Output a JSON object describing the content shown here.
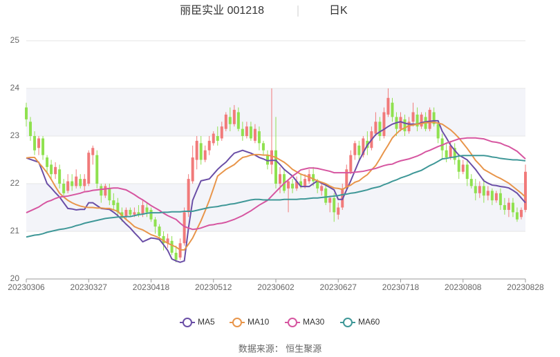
{
  "chart_data": {
    "type": "candlestick",
    "title": "丽臣实业 001218",
    "subtitle": "日K",
    "source": "数据来源： 恒生聚源",
    "up_color": "#f17a7a",
    "down_color": "#8fe14f",
    "ylim": [
      20,
      25
    ],
    "yticks": [
      20,
      21,
      22,
      23,
      24,
      25
    ],
    "grid": true,
    "legend": "bottom",
    "categories": [
      "20230306",
      null,
      null,
      null,
      null,
      null,
      null,
      null,
      null,
      null,
      null,
      null,
      null,
      null,
      null,
      "20230327",
      null,
      null,
      null,
      null,
      null,
      null,
      null,
      null,
      null,
      null,
      null,
      null,
      null,
      null,
      "20230418",
      null,
      null,
      null,
      null,
      null,
      null,
      null,
      null,
      null,
      null,
      null,
      null,
      null,
      null,
      "20230512",
      null,
      null,
      null,
      null,
      null,
      null,
      null,
      null,
      null,
      null,
      null,
      null,
      null,
      null,
      "20230602",
      null,
      null,
      null,
      null,
      null,
      null,
      null,
      null,
      null,
      null,
      null,
      null,
      null,
      null,
      "20230627",
      null,
      null,
      null,
      null,
      null,
      null,
      null,
      null,
      null,
      null,
      null,
      null,
      null,
      null,
      "20230718",
      null,
      null,
      null,
      null,
      null,
      null,
      null,
      null,
      null,
      null,
      null,
      null,
      null,
      null,
      "20230808",
      null,
      null,
      null,
      null,
      null,
      null,
      null,
      null,
      null,
      null,
      null,
      null,
      null,
      null,
      "20230828"
    ],
    "candles": [
      [
        23.6,
        23.35,
        23.2,
        23.7
      ],
      [
        23.3,
        23.0,
        22.9,
        23.4
      ],
      [
        23.0,
        22.7,
        22.6,
        23.1
      ],
      [
        22.75,
        22.95,
        22.6,
        23.0
      ],
      [
        22.95,
        22.6,
        22.5,
        23.0
      ],
      [
        22.55,
        22.35,
        22.2,
        22.6
      ],
      [
        22.4,
        22.2,
        22.1,
        22.5
      ],
      [
        22.2,
        22.35,
        22.1,
        22.45
      ],
      [
        22.3,
        22.0,
        21.9,
        22.4
      ],
      [
        22.0,
        21.8,
        21.75,
        22.1
      ],
      [
        21.85,
        22.05,
        21.8,
        22.2
      ],
      [
        22.05,
        21.95,
        21.85,
        22.2
      ],
      [
        21.95,
        22.15,
        21.9,
        22.3
      ],
      [
        22.1,
        21.95,
        21.9,
        22.2
      ],
      [
        21.95,
        22.1,
        21.85,
        22.2
      ],
      [
        22.0,
        22.65,
        21.95,
        22.7
      ],
      [
        22.6,
        22.75,
        22.4,
        22.8
      ],
      [
        22.6,
        22.0,
        21.9,
        22.7
      ],
      [
        21.95,
        21.75,
        21.6,
        22.0
      ],
      [
        21.75,
        21.95,
        21.7,
        22.0
      ],
      [
        21.9,
        21.65,
        21.55,
        22.0
      ],
      [
        21.65,
        21.55,
        21.45,
        21.8
      ],
      [
        21.6,
        21.4,
        21.3,
        21.7
      ],
      [
        21.4,
        21.3,
        21.2,
        21.5
      ],
      [
        21.3,
        21.45,
        21.25,
        21.5
      ],
      [
        21.45,
        21.35,
        21.3,
        21.5
      ],
      [
        21.35,
        21.4,
        21.3,
        21.5
      ],
      [
        21.4,
        21.35,
        21.3,
        21.55
      ],
      [
        21.35,
        21.55,
        21.3,
        21.65
      ],
      [
        21.5,
        21.4,
        21.3,
        21.6
      ],
      [
        21.45,
        21.25,
        21.2,
        21.5
      ],
      [
        21.25,
        21.1,
        20.95,
        21.3
      ],
      [
        21.1,
        20.9,
        20.8,
        21.15
      ],
      [
        20.9,
        20.75,
        20.6,
        21.0
      ],
      [
        20.75,
        20.85,
        20.65,
        20.95
      ],
      [
        20.8,
        20.55,
        20.5,
        20.9
      ],
      [
        20.55,
        20.4,
        20.35,
        20.7
      ],
      [
        20.45,
        20.75,
        20.4,
        20.85
      ],
      [
        20.75,
        21.4,
        20.7,
        21.5
      ],
      [
        21.4,
        22.1,
        21.3,
        22.2
      ],
      [
        22.05,
        22.55,
        22.0,
        22.8
      ],
      [
        22.5,
        22.9,
        22.3,
        23.0
      ],
      [
        22.85,
        22.5,
        22.4,
        23.0
      ],
      [
        22.5,
        22.7,
        22.45,
        22.8
      ],
      [
        22.7,
        22.9,
        22.6,
        23.0
      ],
      [
        22.85,
        23.05,
        22.8,
        23.1
      ],
      [
        23.0,
        22.9,
        22.8,
        23.2
      ],
      [
        22.95,
        23.2,
        22.9,
        23.3
      ],
      [
        23.15,
        23.45,
        23.1,
        23.5
      ],
      [
        23.4,
        23.25,
        23.1,
        23.6
      ],
      [
        23.25,
        23.55,
        23.2,
        23.65
      ],
      [
        23.5,
        23.15,
        23.1,
        23.6
      ],
      [
        23.15,
        23.0,
        22.9,
        23.3
      ],
      [
        23.0,
        23.2,
        22.95,
        23.3
      ],
      [
        23.2,
        22.95,
        22.9,
        23.3
      ],
      [
        22.9,
        23.15,
        22.85,
        23.25
      ],
      [
        23.1,
        22.85,
        22.7,
        23.2
      ],
      [
        22.85,
        22.7,
        22.6,
        22.9
      ],
      [
        22.6,
        22.4,
        22.3,
        22.7
      ],
      [
        22.4,
        22.7,
        22.2,
        24.0
      ],
      [
        22.7,
        22.0,
        21.9,
        23.4
      ],
      [
        22.0,
        22.2,
        21.8,
        22.35
      ],
      [
        22.2,
        21.85,
        21.8,
        22.3
      ],
      [
        21.9,
        22.05,
        21.4,
        22.1
      ],
      [
        22.0,
        21.9,
        21.8,
        22.1
      ],
      [
        21.9,
        22.05,
        21.85,
        22.15
      ],
      [
        22.05,
        21.95,
        21.9,
        22.2
      ],
      [
        21.95,
        22.1,
        21.9,
        22.2
      ],
      [
        22.05,
        22.2,
        22.0,
        22.3
      ],
      [
        22.2,
        22.05,
        21.95,
        22.35
      ],
      [
        22.05,
        21.9,
        21.8,
        22.1
      ],
      [
        21.85,
        21.95,
        21.75,
        22.0
      ],
      [
        21.9,
        21.6,
        21.55,
        22.0
      ],
      [
        21.6,
        21.7,
        21.4,
        21.75
      ],
      [
        21.7,
        21.4,
        21.2,
        21.8
      ],
      [
        21.35,
        21.5,
        21.25,
        21.6
      ],
      [
        21.5,
        21.9,
        21.45,
        22.0
      ],
      [
        21.9,
        22.3,
        21.85,
        22.4
      ],
      [
        22.25,
        22.6,
        22.2,
        22.7
      ],
      [
        22.6,
        22.85,
        22.5,
        22.9
      ],
      [
        22.8,
        22.6,
        22.5,
        22.9
      ],
      [
        22.6,
        22.95,
        22.55,
        23.0
      ],
      [
        22.9,
        22.75,
        22.6,
        23.1
      ],
      [
        22.75,
        23.1,
        22.7,
        23.2
      ],
      [
        23.05,
        23.3,
        23.0,
        23.5
      ],
      [
        23.3,
        23.0,
        22.9,
        23.4
      ],
      [
        23.0,
        23.5,
        22.95,
        23.6
      ],
      [
        23.45,
        23.8,
        23.4,
        24.0
      ],
      [
        23.7,
        23.4,
        23.3,
        23.8
      ],
      [
        23.4,
        23.15,
        23.0,
        23.5
      ],
      [
        23.15,
        23.4,
        23.1,
        23.5
      ],
      [
        23.35,
        23.1,
        23.0,
        23.45
      ],
      [
        23.1,
        23.3,
        23.05,
        23.4
      ],
      [
        23.3,
        23.5,
        23.2,
        23.7
      ],
      [
        23.45,
        23.2,
        23.1,
        23.6
      ],
      [
        23.2,
        23.45,
        23.15,
        23.5
      ],
      [
        23.4,
        23.15,
        23.1,
        23.5
      ],
      [
        23.15,
        23.55,
        23.1,
        23.6
      ],
      [
        23.5,
        23.25,
        23.2,
        23.6
      ],
      [
        23.25,
        22.95,
        22.85,
        23.3
      ],
      [
        22.95,
        22.7,
        22.5,
        23.05
      ],
      [
        22.7,
        22.55,
        22.45,
        22.85
      ],
      [
        22.55,
        22.8,
        22.5,
        22.9
      ],
      [
        22.75,
        22.5,
        22.4,
        22.85
      ],
      [
        22.5,
        22.25,
        22.1,
        22.6
      ],
      [
        22.25,
        22.4,
        22.2,
        22.5
      ],
      [
        22.4,
        22.1,
        21.95,
        22.5
      ],
      [
        22.1,
        21.95,
        21.9,
        22.2
      ],
      [
        21.95,
        21.8,
        21.65,
        22.1
      ],
      [
        21.8,
        21.95,
        21.7,
        22.05
      ],
      [
        21.95,
        21.75,
        21.6,
        22.1
      ],
      [
        21.75,
        21.85,
        21.65,
        21.95
      ],
      [
        21.85,
        21.65,
        21.55,
        21.9
      ],
      [
        21.65,
        21.8,
        21.6,
        21.85
      ],
      [
        21.8,
        21.55,
        21.45,
        21.9
      ],
      [
        21.55,
        21.45,
        21.35,
        21.7
      ],
      [
        21.45,
        21.6,
        21.3,
        21.7
      ],
      [
        21.6,
        21.4,
        21.3,
        21.7
      ],
      [
        21.4,
        21.25,
        21.2,
        21.5
      ],
      [
        21.3,
        21.45,
        21.25,
        21.5
      ],
      [
        21.45,
        22.25,
        21.4,
        22.4
      ]
    ],
    "series": [
      {
        "name": "MA5",
        "color": "#6a4ea6",
        "values": [
          22.54,
          22.51,
          22.48,
          22.45,
          22.23,
          22.0,
          21.91,
          21.81,
          21.72,
          21.6,
          21.48,
          21.47,
          21.45,
          21.46,
          21.46,
          21.6,
          21.6,
          21.54,
          21.48,
          21.47,
          21.46,
          21.4,
          21.33,
          21.24,
          21.15,
          21.07,
          20.97,
          20.88,
          20.78,
          20.82,
          20.86,
          20.85,
          20.83,
          20.72,
          20.6,
          20.42,
          20.38,
          20.35,
          20.38,
          21.07,
          21.65,
          21.86,
          22.06,
          22.08,
          22.1,
          22.2,
          22.3,
          22.38,
          22.45,
          22.55,
          22.64,
          22.67,
          22.7,
          22.67,
          22.64,
          22.6,
          22.55,
          22.52,
          22.48,
          22.49,
          22.49,
          22.4,
          22.3,
          22.23,
          22.16,
          22.05,
          21.94,
          21.94,
          21.94,
          22.0,
          22.06,
          22.01,
          21.97,
          21.92,
          21.87,
          21.67,
          21.67,
          21.87,
          22.06,
          22.27,
          22.48,
          22.65,
          22.81,
          22.92,
          23.03,
          23.09,
          23.14,
          23.2,
          23.25,
          23.28,
          23.3,
          23.27,
          23.25,
          23.25,
          23.25,
          23.28,
          23.3,
          23.31,
          23.32,
          23.32,
          23.1,
          22.96,
          22.81,
          22.7,
          22.6,
          22.55,
          22.5,
          22.4,
          22.3,
          22.18,
          22.06,
          22.01,
          21.97,
          21.96,
          21.94,
          21.93,
          21.91,
          21.86,
          21.8,
          21.7,
          21.6
        ]
      },
      {
        "name": "MA10",
        "color": "#e8954a",
        "values": [
          22.54,
          22.55,
          22.55,
          22.44,
          22.34,
          22.23,
          22.09,
          21.94,
          21.8,
          21.72,
          21.65,
          21.6,
          21.56,
          21.53,
          21.51,
          21.5,
          21.5,
          21.49,
          21.49,
          21.48,
          21.48,
          21.45,
          21.42,
          21.33,
          21.25,
          21.18,
          21.1,
          21.06,
          21.03,
          20.98,
          20.93,
          20.9,
          20.86,
          20.8,
          20.75,
          20.71,
          20.67,
          20.61,
          20.61,
          20.73,
          20.86,
          21.04,
          21.22,
          21.43,
          21.65,
          21.9,
          22.16,
          22.23,
          22.3,
          22.35,
          22.4,
          22.48,
          22.55,
          22.57,
          22.6,
          22.61,
          22.61,
          22.6,
          22.6,
          22.58,
          22.55,
          22.5,
          22.45,
          22.38,
          22.3,
          22.25,
          22.2,
          22.17,
          22.14,
          22.1,
          22.06,
          22.03,
          22.0,
          21.95,
          21.91,
          21.9,
          21.88,
          21.93,
          21.97,
          22.03,
          22.06,
          22.13,
          22.19,
          22.29,
          22.38,
          22.52,
          22.67,
          22.81,
          22.96,
          23.05,
          23.13,
          23.17,
          23.22,
          23.23,
          23.25,
          23.26,
          23.28,
          23.28,
          23.29,
          23.27,
          23.25,
          23.19,
          23.13,
          23.05,
          22.96,
          22.85,
          22.74,
          22.62,
          22.49,
          22.4,
          22.3,
          22.25,
          22.2,
          22.15,
          22.11,
          22.06,
          22.01,
          21.94,
          21.87,
          21.8,
          21.72
        ]
      },
      {
        "name": "MA30",
        "color": "#d655a0",
        "values": [
          21.39,
          21.43,
          21.47,
          21.51,
          21.57,
          21.62,
          21.65,
          21.69,
          21.72,
          21.73,
          21.74,
          21.76,
          21.78,
          21.8,
          21.83,
          21.84,
          21.86,
          21.87,
          21.88,
          21.89,
          21.9,
          21.91,
          21.91,
          21.89,
          21.87,
          21.82,
          21.77,
          21.71,
          21.66,
          21.6,
          21.54,
          21.49,
          21.44,
          21.38,
          21.33,
          21.29,
          21.25,
          21.17,
          21.1,
          21.07,
          21.04,
          21.05,
          21.07,
          21.1,
          21.13,
          21.14,
          21.16,
          21.17,
          21.19,
          21.22,
          21.25,
          21.29,
          21.33,
          21.38,
          21.43,
          21.49,
          21.55,
          21.6,
          21.65,
          21.74,
          21.83,
          21.92,
          22.01,
          22.08,
          22.16,
          22.22,
          22.29,
          22.31,
          22.33,
          22.33,
          22.32,
          22.3,
          22.28,
          22.26,
          22.23,
          22.23,
          22.23,
          22.23,
          22.23,
          22.24,
          22.25,
          22.26,
          22.28,
          22.3,
          22.32,
          22.35,
          22.38,
          22.4,
          22.41,
          22.45,
          22.48,
          22.5,
          22.52,
          22.55,
          22.58,
          22.62,
          22.67,
          22.7,
          22.74,
          22.78,
          22.81,
          22.85,
          22.88,
          22.91,
          22.94,
          22.95,
          22.96,
          22.96,
          22.96,
          22.95,
          22.94,
          22.91,
          22.88,
          22.87,
          22.85,
          22.81,
          22.78,
          22.73,
          22.68,
          22.6,
          22.52
        ]
      },
      {
        "name": "MA60",
        "color": "#3e9797",
        "values": [
          20.88,
          20.9,
          20.92,
          20.93,
          20.95,
          20.98,
          21.0,
          21.02,
          21.04,
          21.05,
          21.07,
          21.09,
          21.12,
          21.14,
          21.17,
          21.19,
          21.21,
          21.23,
          21.25,
          21.27,
          21.28,
          21.29,
          21.3,
          21.3,
          21.31,
          21.31,
          21.33,
          21.35,
          21.36,
          21.38,
          21.39,
          21.39,
          21.39,
          21.4,
          21.4,
          21.41,
          21.41,
          21.41,
          21.42,
          21.42,
          21.42,
          21.44,
          21.46,
          21.48,
          21.5,
          21.51,
          21.52,
          21.54,
          21.55,
          21.57,
          21.58,
          21.6,
          21.62,
          21.64,
          21.66,
          21.67,
          21.67,
          21.66,
          21.66,
          21.66,
          21.66,
          21.66,
          21.67,
          21.67,
          21.67,
          21.67,
          21.68,
          21.68,
          21.69,
          21.7,
          21.7,
          21.71,
          21.72,
          21.73,
          21.74,
          21.75,
          21.77,
          21.78,
          21.8,
          21.81,
          21.83,
          21.85,
          21.87,
          21.9,
          21.92,
          21.94,
          21.98,
          22.01,
          22.05,
          22.08,
          22.12,
          22.15,
          22.18,
          22.22,
          22.25,
          22.28,
          22.33,
          22.38,
          22.42,
          22.47,
          22.52,
          22.53,
          22.55,
          22.56,
          22.58,
          22.59,
          22.59,
          22.59,
          22.59,
          22.59,
          22.59,
          22.58,
          22.56,
          22.55,
          22.53,
          22.52,
          22.51,
          22.5,
          22.5,
          22.49,
          22.48
        ]
      }
    ]
  }
}
